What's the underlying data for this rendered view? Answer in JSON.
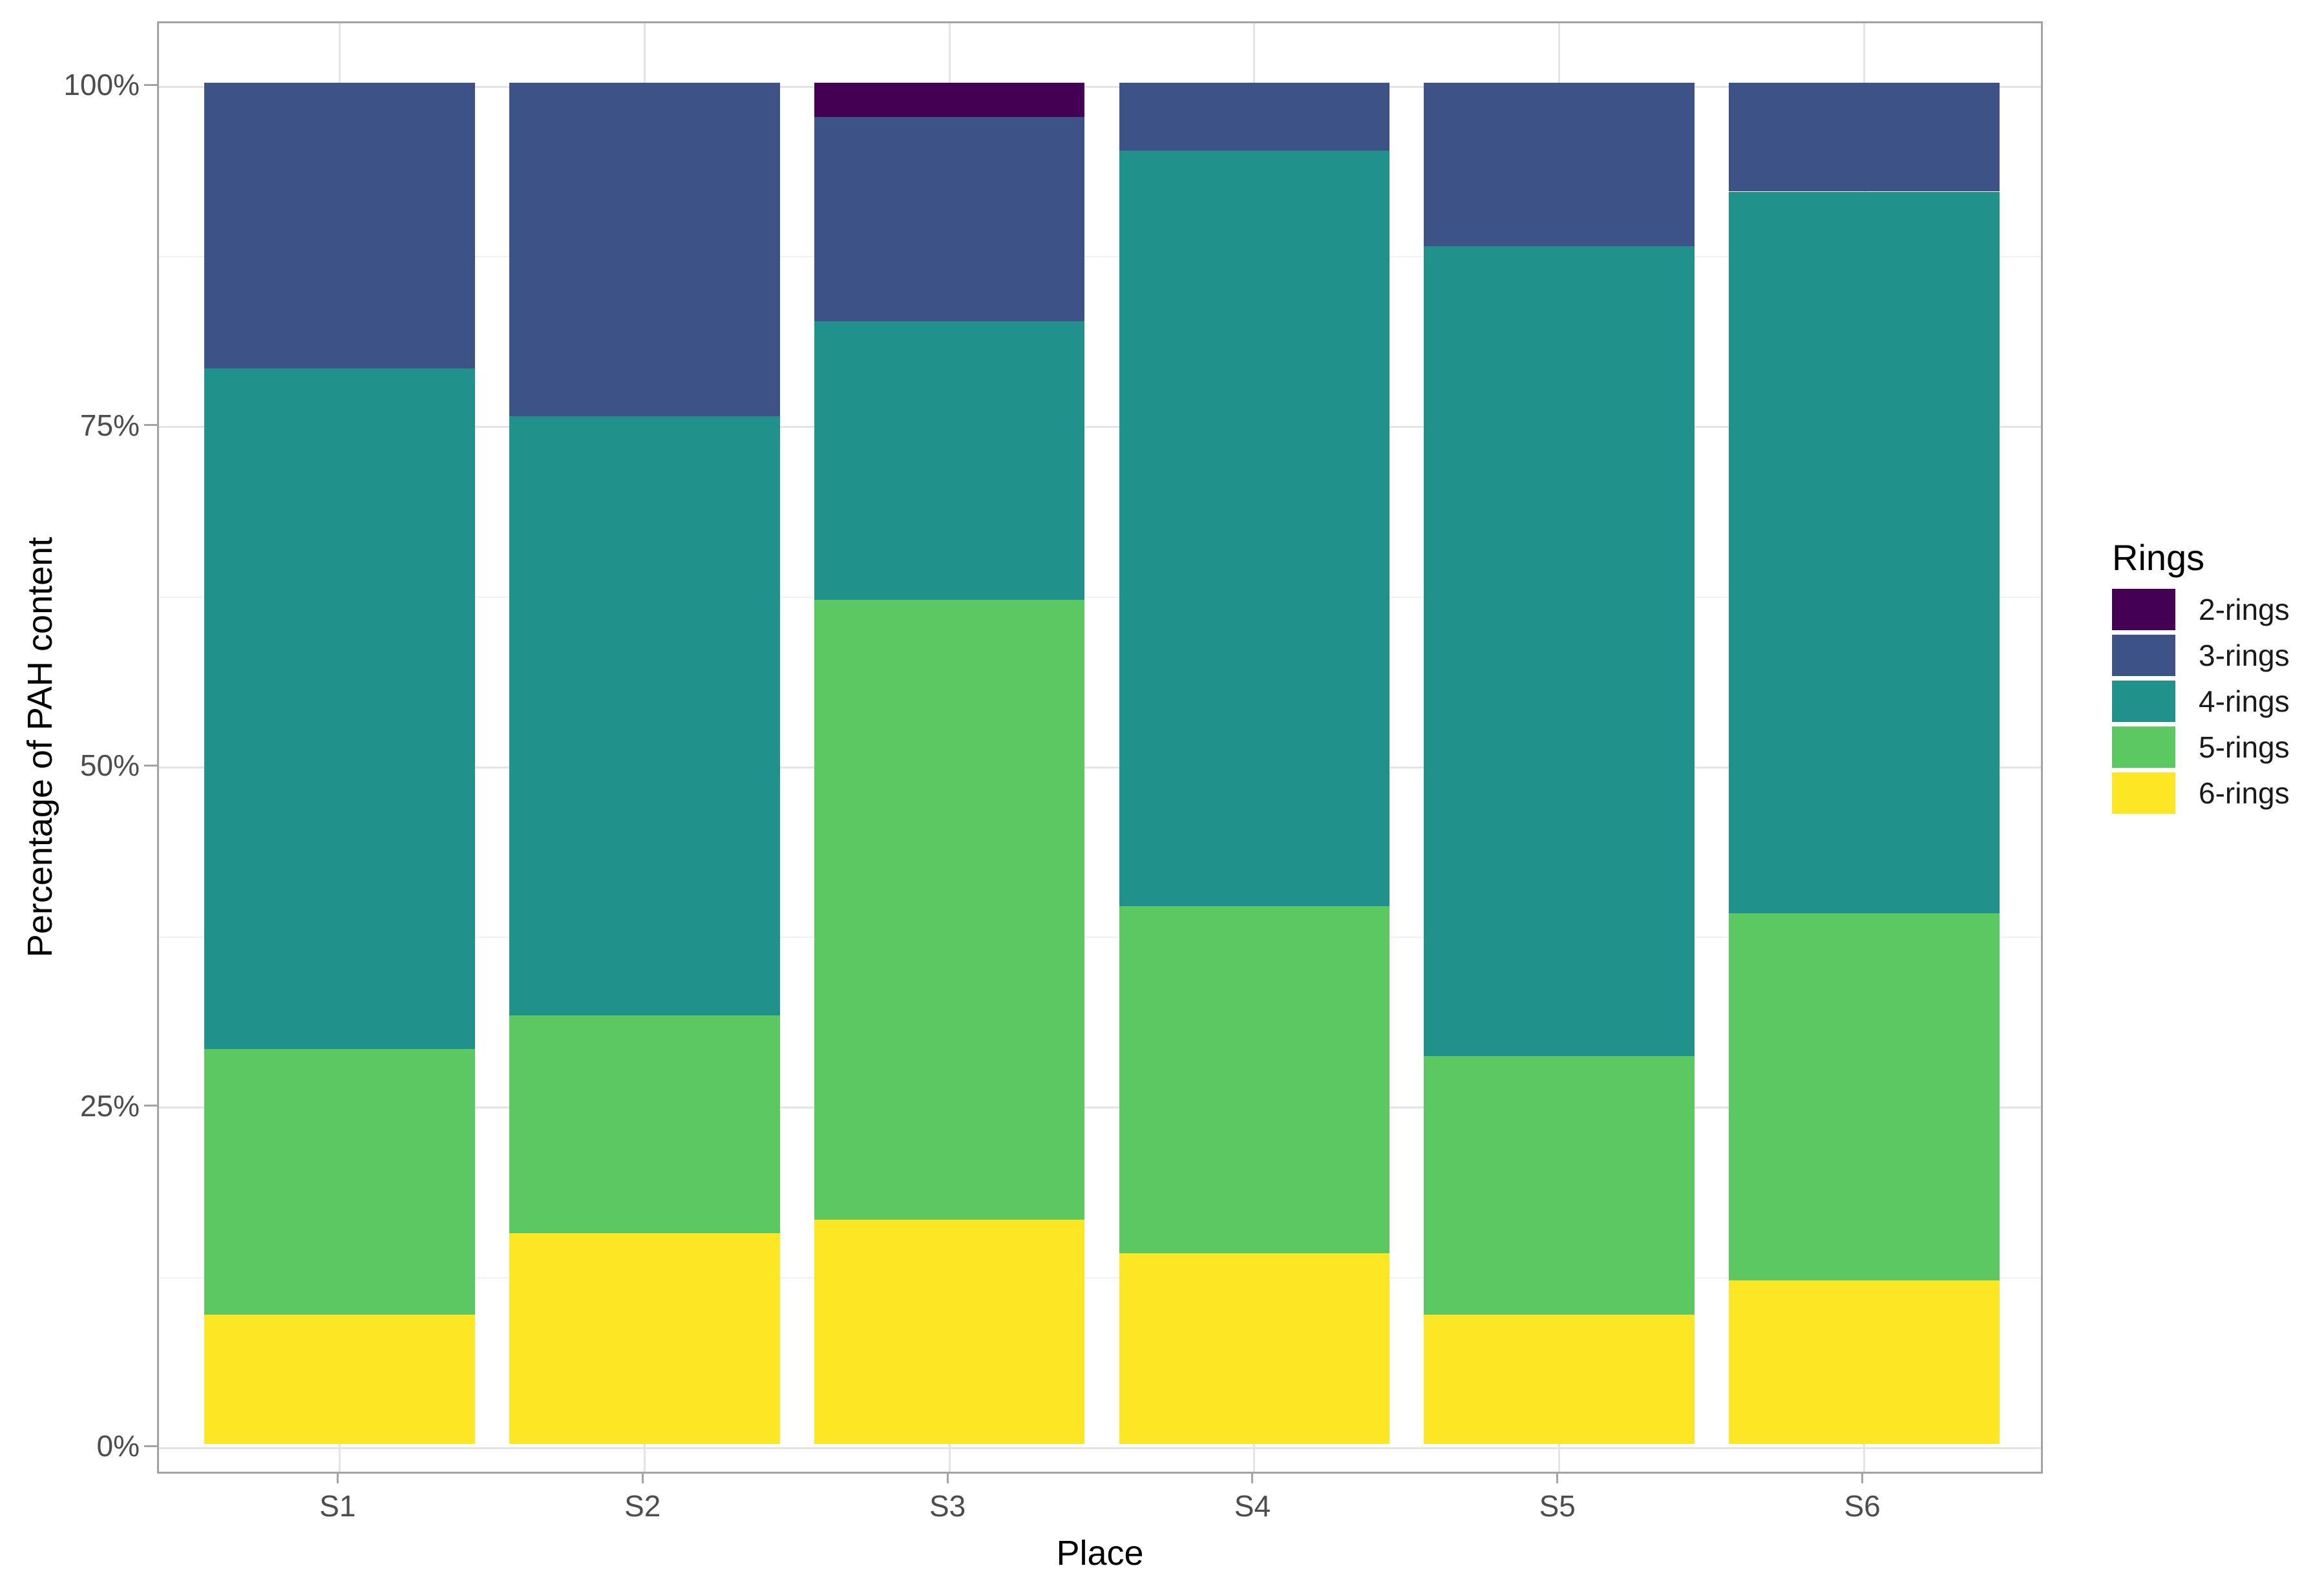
{
  "chart_data": {
    "type": "bar",
    "stacked": true,
    "percent": true,
    "title": "",
    "xlabel": "Place",
    "ylabel": "Percentage of PAH content",
    "categories": [
      "S1",
      "S2",
      "S3",
      "S4",
      "S5",
      "S6"
    ],
    "series": [
      {
        "name": "2-rings",
        "color": "#440154",
        "values": [
          0,
          0,
          2.5,
          0,
          0,
          0
        ]
      },
      {
        "name": "3-rings",
        "color": "#3d5388",
        "values": [
          21,
          24.5,
          15,
          5,
          12,
          8
        ]
      },
      {
        "name": "4-rings",
        "color": "#21918c",
        "values": [
          50,
          44,
          20.5,
          55.5,
          59.5,
          53
        ]
      },
      {
        "name": "5-rings",
        "color": "#5bc862",
        "values": [
          19.5,
          16,
          45.5,
          25.5,
          19,
          27
        ]
      },
      {
        "name": "6-rings",
        "color": "#fde725",
        "values": [
          9.5,
          15.5,
          16.5,
          14,
          9.5,
          12
        ]
      }
    ],
    "stack_order_bottom_to_top": [
      "6-rings",
      "5-rings",
      "4-rings",
      "3-rings",
      "2-rings"
    ],
    "ylim": [
      0,
      100
    ],
    "grid": true,
    "legend_position": "right"
  },
  "axes": {
    "y": {
      "title": "Percentage of PAH content",
      "tick_values": [
        100,
        75,
        50,
        25,
        0
      ],
      "tick_labels": [
        "100%",
        "75%",
        "50%",
        "25%",
        "0%"
      ],
      "minor_tick_values": [
        12.5,
        37.5,
        62.5,
        87.5
      ]
    },
    "x": {
      "title": "Place",
      "tick_labels": [
        "S1",
        "S2",
        "S3",
        "S4",
        "S5",
        "S6"
      ]
    }
  },
  "legend": {
    "title": "Rings",
    "items": [
      {
        "label": "2-rings",
        "color": "#440154"
      },
      {
        "label": "3-rings",
        "color": "#3d5388"
      },
      {
        "label": "4-rings",
        "color": "#21918c"
      },
      {
        "label": "5-rings",
        "color": "#5bc862"
      },
      {
        "label": "6-rings",
        "color": "#fde725"
      }
    ]
  },
  "colors": {
    "grid_major": "#e4e4e4",
    "grid_minor": "#f1f1f1",
    "panel_border": "#a3a3a3",
    "tick_text": "#4d4d4d",
    "axis_title_text": "#000000"
  }
}
